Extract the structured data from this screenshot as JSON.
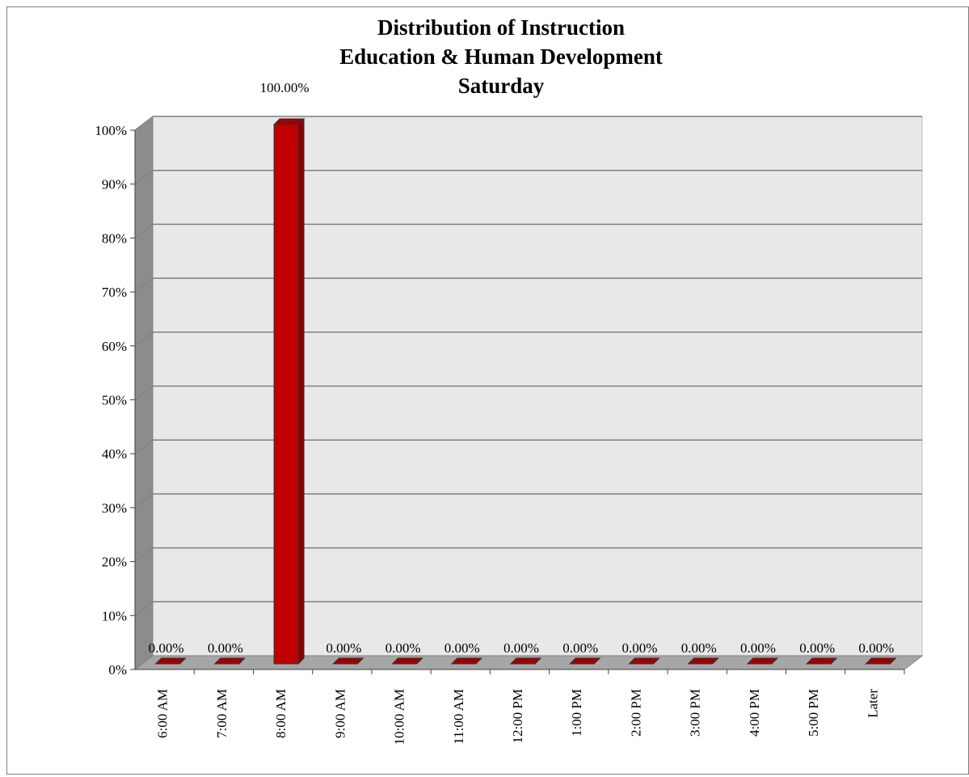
{
  "chart_data": {
    "type": "bar",
    "title_lines": [
      "Distribution of Instruction",
      "Education & Human Development",
      "Saturday"
    ],
    "categories": [
      "6:00 AM",
      "7:00 AM",
      "8:00 AM",
      "9:00 AM",
      "10:00 AM",
      "11:00 AM",
      "12:00 PM",
      "1:00 PM",
      "2:00 PM",
      "3:00 PM",
      "4:00 PM",
      "5:00 PM",
      "Later"
    ],
    "values": [
      0,
      0,
      100,
      0,
      0,
      0,
      0,
      0,
      0,
      0,
      0,
      0,
      0
    ],
    "data_labels": [
      "0.00%",
      "0.00%",
      "100.00%",
      "0.00%",
      "0.00%",
      "0.00%",
      "0.00%",
      "0.00%",
      "0.00%",
      "0.00%",
      "0.00%",
      "0.00%",
      "0.00%"
    ],
    "y_ticks": [
      "0%",
      "10%",
      "20%",
      "30%",
      "40%",
      "50%",
      "60%",
      "70%",
      "80%",
      "90%",
      "100%"
    ],
    "ylim": [
      0,
      100
    ],
    "xlabel": "",
    "ylabel": "",
    "grid": true,
    "style": "3d-column",
    "colors": {
      "bar_front": "#c00000",
      "bar_top": "#a00000",
      "bar_side": "#8b0000",
      "bar_outline": "#333333",
      "wall": "#e8e8e8",
      "side_wall": "#8c8c8c",
      "floor": "#a6a6a6",
      "gridline": "#7f7f7f"
    }
  }
}
